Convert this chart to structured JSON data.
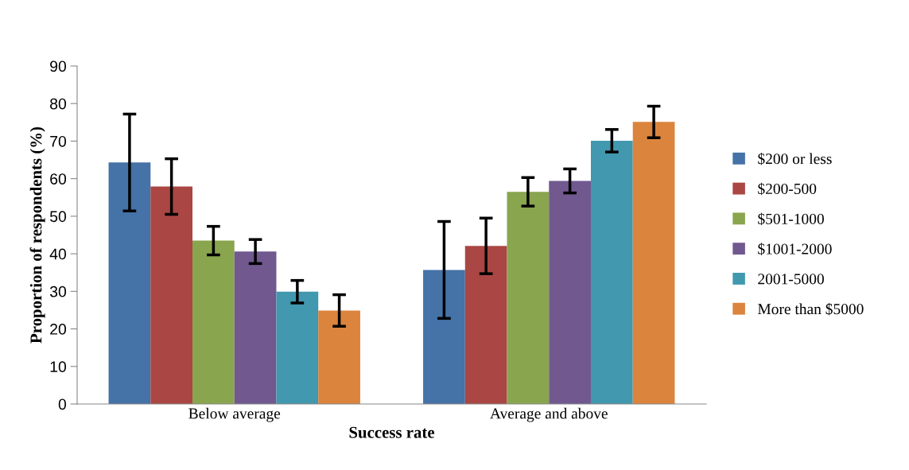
{
  "chart_data": {
    "type": "bar",
    "xlabel": "Success rate",
    "ylabel": "Proportion of respondents (%)",
    "categories": [
      "Below average",
      "Average and above"
    ],
    "series": [
      {
        "name": "$200 or less",
        "color": "#4572a7",
        "values": [
          64.3,
          35.7
        ],
        "errors": [
          12.9,
          12.9
        ]
      },
      {
        "name": "$200-500",
        "color": "#aa4643",
        "values": [
          57.9,
          42.1
        ],
        "errors": [
          7.4,
          7.4
        ]
      },
      {
        "name": "$501-1000",
        "color": "#89a54e",
        "values": [
          43.5,
          56.5
        ],
        "errors": [
          3.8,
          3.8
        ]
      },
      {
        "name": "$1001-2000",
        "color": "#71588f",
        "values": [
          40.6,
          59.4
        ],
        "errors": [
          3.2,
          3.2
        ]
      },
      {
        "name": "2001-5000",
        "color": "#4198af",
        "values": [
          29.9,
          70.1
        ],
        "errors": [
          3.0,
          3.0
        ]
      },
      {
        "name": "More than $5000",
        "color": "#db843d",
        "values": [
          24.9,
          75.1
        ],
        "errors": [
          4.2,
          4.2
        ]
      }
    ],
    "ylim": [
      0,
      90
    ],
    "yticks": [
      0,
      10,
      20,
      30,
      40,
      50,
      60,
      70,
      80,
      90
    ],
    "grid": false,
    "legend": "right"
  }
}
